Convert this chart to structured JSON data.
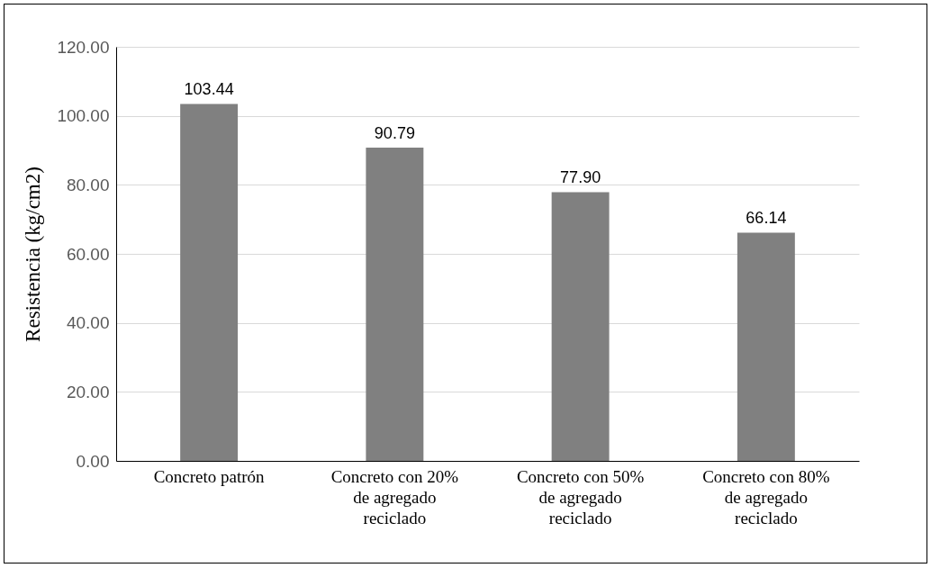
{
  "chart_data": {
    "type": "bar",
    "ylabel": "Resistencia (kg/cm2)",
    "categories": [
      "Concreto patrón",
      "Concreto con 20% de agregado reciclado",
      "Concreto con 50% de agregado reciclado",
      "Concreto con 80% de agregado reciclado"
    ],
    "values": [
      103.44,
      90.79,
      77.9,
      66.14
    ],
    "value_labels": [
      "103.44",
      "90.79",
      "77.90",
      "66.14"
    ],
    "color": "#808080",
    "ylim": [
      0,
      120
    ],
    "yticks": [
      {
        "value": 0,
        "label": "0.00"
      },
      {
        "value": 20,
        "label": "20.00"
      },
      {
        "value": 40,
        "label": "40.00"
      },
      {
        "value": 60,
        "label": "60.00"
      },
      {
        "value": 80,
        "label": "80.00"
      },
      {
        "value": 100,
        "label": "100.00"
      },
      {
        "value": 120,
        "label": "120.00"
      }
    ],
    "grid": "y"
  }
}
